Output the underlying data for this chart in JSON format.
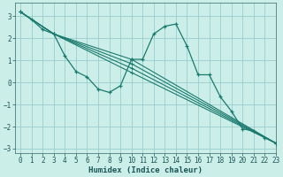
{
  "xlabel": "Humidex (Indice chaleur)",
  "xlim": [
    -0.5,
    23
  ],
  "ylim": [
    -3.2,
    3.6
  ],
  "background_color": "#cceee8",
  "plot_bg_color": "#cceee8",
  "grid_color": "#99cccc",
  "line_color": "#1a7a6e",
  "lines": [
    {
      "x": [
        0,
        1,
        2,
        3,
        4,
        5,
        6,
        7,
        8,
        9,
        10,
        11,
        12,
        13,
        14,
        15,
        16,
        17,
        18,
        19,
        20,
        21,
        22,
        23
      ],
      "y": [
        3.2,
        2.85,
        2.4,
        2.2,
        1.2,
        0.5,
        0.25,
        -0.3,
        -0.45,
        -0.15,
        1.05,
        1.05,
        2.2,
        2.55,
        2.65,
        1.65,
        0.35,
        0.35,
        -0.65,
        -1.3,
        -2.1,
        -2.2,
        -2.5,
        -2.75
      ]
    },
    {
      "x": [
        0,
        3,
        10,
        23
      ],
      "y": [
        3.2,
        2.2,
        1.05,
        -2.75
      ]
    },
    {
      "x": [
        0,
        3,
        10,
        23
      ],
      "y": [
        3.2,
        2.2,
        0.85,
        -2.75
      ]
    },
    {
      "x": [
        0,
        3,
        10,
        23
      ],
      "y": [
        3.2,
        2.2,
        0.65,
        -2.75
      ]
    },
    {
      "x": [
        0,
        3,
        10,
        23
      ],
      "y": [
        3.2,
        2.2,
        0.45,
        -2.75
      ]
    }
  ],
  "xticks": [
    0,
    1,
    2,
    3,
    4,
    5,
    6,
    7,
    8,
    9,
    10,
    11,
    12,
    13,
    14,
    15,
    16,
    17,
    18,
    19,
    20,
    21,
    22,
    23
  ],
  "yticks": [
    -3,
    -2,
    -1,
    0,
    1,
    2,
    3
  ],
  "axis_fontsize": 6.5,
  "tick_fontsize": 5.5
}
